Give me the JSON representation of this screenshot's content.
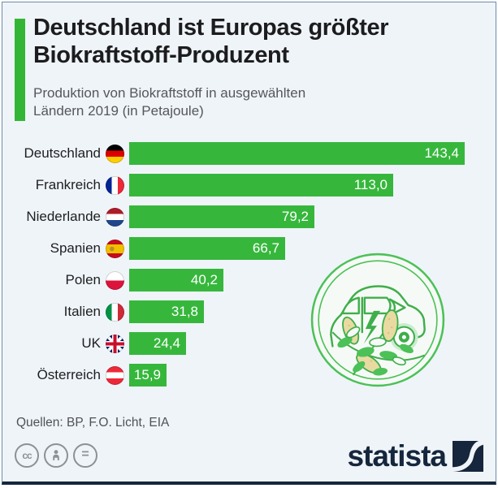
{
  "header": {
    "title": "Deutschland ist Europas größter Biokraftstoff-Produzent",
    "subtitle": "Produktion von Biokraftstoff in ausgewählten Ländern 2019 (in Petajoule)"
  },
  "chart_data": {
    "type": "bar",
    "orientation": "horizontal",
    "title": "Deutschland ist Europas größter Biokraftstoff-Produzent",
    "subtitle": "Produktion von Biokraftstoff in ausgewählten Ländern 2019 (in Petajoule)",
    "unit": "Petajoule",
    "year": "2019",
    "categories": [
      "Deutschland",
      "Frankreich",
      "Niederlande",
      "Spanien",
      "Polen",
      "Italien",
      "UK",
      "Österreich"
    ],
    "values": [
      143.4,
      113.0,
      79.2,
      66.7,
      40.2,
      31.8,
      24.4,
      15.9
    ],
    "value_labels": [
      "143,4",
      "113,0",
      "79,2",
      "66,7",
      "40,2",
      "31,8",
      "24,4",
      "15,9"
    ],
    "flags": [
      "germany",
      "france",
      "netherlands",
      "spain",
      "poland",
      "italy",
      "uk",
      "austria"
    ],
    "xlim": [
      0,
      143.4
    ],
    "grid": false,
    "legend": false,
    "bar_color": "#36b73c"
  },
  "footer": {
    "sources": "Quellen: BP, F.O. Licht, EIA",
    "license_icons": [
      "cc-icon",
      "attribution-icon",
      "no-derivatives-icon"
    ],
    "cc_label": "cc",
    "nd_label": "=",
    "logo_text": "statista"
  },
  "colors": {
    "background": "#eff4f9",
    "accent_green": "#33b636",
    "bar_green": "#36b73c",
    "illustration_green": "#4cc157",
    "navy": "#16263c",
    "title_text": "#1c1c1e",
    "subtitle_text": "#55575c",
    "border": "#6e8ca8",
    "corn_yellow": "#e9daa1"
  }
}
